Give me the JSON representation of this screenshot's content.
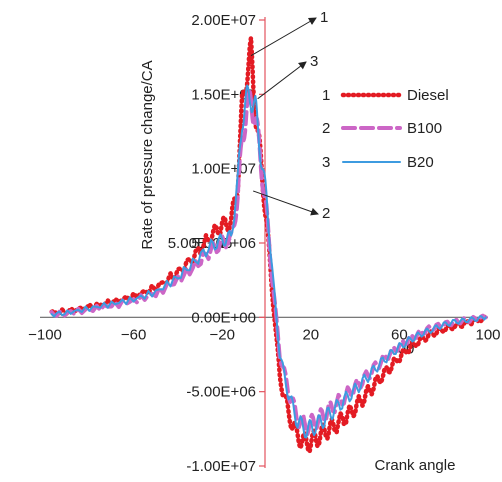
{
  "chart_data": {
    "type": "line",
    "xlabel": "Crank angle",
    "ylabel": "Rate of pressure change/CA",
    "xlim": [
      -100,
      100
    ],
    "ylim": [
      -10000000,
      20000000
    ],
    "x_ticks": [
      {
        "value": -100,
        "label": "−100"
      },
      {
        "value": -60,
        "label": "−60"
      },
      {
        "value": -20,
        "label": "−20"
      },
      {
        "value": 20,
        "label": "20"
      },
      {
        "value": 60,
        "label": "60"
      },
      {
        "value": 100,
        "label": "100"
      }
    ],
    "y_ticks": [
      {
        "value": 20000000,
        "label": "2.00E+07"
      },
      {
        "value": 15000000,
        "label": "1.50E+07"
      },
      {
        "value": 10000000,
        "label": "1.00E+07"
      },
      {
        "value": 5000000,
        "label": "5.00E+06"
      },
      {
        "value": 0,
        "label": "0.00E+00"
      },
      {
        "value": -5000000,
        "label": "-5.00E+06"
      },
      {
        "value": -10000000,
        "label": "-1.00E+07"
      }
    ],
    "stray_labels": [
      "5.00E+06",
      "00"
    ],
    "legend": {
      "position": "right",
      "entries": [
        {
          "number": "1",
          "name": "Diesel"
        },
        {
          "number": "2",
          "name": "B100"
        },
        {
          "number": "3",
          "name": "B20"
        }
      ]
    },
    "annotations": [
      {
        "label": "1",
        "target_x": -7,
        "target_y": 17600000
      },
      {
        "label": "3",
        "target_x": -4,
        "target_y": 14700000
      },
      {
        "label": "2",
        "target_x": -6,
        "target_y": 8500000
      }
    ],
    "series": [
      {
        "name": "Diesel",
        "color": "#e31b23",
        "style": "dotted",
        "x": [
          -97,
          -90,
          -80,
          -70,
          -60,
          -50,
          -40,
          -32,
          -25,
          -20,
          -16,
          -13,
          -11,
          -9,
          -7,
          -5,
          -3,
          0,
          3,
          6,
          10,
          14,
          18,
          21,
          24,
          27,
          30,
          35,
          40,
          45,
          50,
          55,
          60,
          65,
          70,
          75,
          80,
          85,
          90,
          95,
          99
        ],
        "y": [
          300000,
          400000,
          700000,
          1000000,
          1400000,
          2000000,
          3000000,
          4200000,
          5500000,
          6200000,
          6400000,
          9000000,
          14000000,
          16500000,
          17600000,
          14000000,
          11000000,
          6500000,
          1000000,
          -4000000,
          -6500000,
          -8000000,
          -8500000,
          -8300000,
          -8000000,
          -7600000,
          -7400000,
          -6800000,
          -6100000,
          -5200000,
          -4300000,
          -3500000,
          -2700000,
          -2000000,
          -1500000,
          -1100000,
          -800000,
          -600000,
          -400000,
          -200000,
          -100000
        ]
      },
      {
        "name": "B100",
        "color": "#cc66c6",
        "style": "dashed",
        "x": [
          -97,
          -90,
          -80,
          -70,
          -60,
          -50,
          -40,
          -32,
          -25,
          -20,
          -16,
          -13,
          -11,
          -9,
          -7,
          -5,
          -3,
          0,
          3,
          6,
          10,
          14,
          18,
          21,
          24,
          27,
          30,
          35,
          40,
          45,
          50,
          55,
          60,
          65,
          70,
          75,
          80,
          85,
          90,
          95,
          99
        ],
        "y": [
          200000,
          300000,
          500000,
          800000,
          1100000,
          1600000,
          2500000,
          3500000,
          4500000,
          5000000,
          5200000,
          8000000,
          12000000,
          14000000,
          14500000,
          13500000,
          11000000,
          7000000,
          2000000,
          -2500000,
          -5000000,
          -6800000,
          -7300000,
          -7100000,
          -6800000,
          -6400000,
          -6000000,
          -5400000,
          -4700000,
          -4000000,
          -3200000,
          -2500000,
          -1900000,
          -1400000,
          -1000000,
          -700000,
          -500000,
          -300000,
          -200000,
          -100000,
          0
        ]
      },
      {
        "name": "B20",
        "color": "#3d9be0",
        "style": "solid",
        "x": [
          -97,
          -90,
          -80,
          -70,
          -60,
          -50,
          -40,
          -32,
          -25,
          -20,
          -16,
          -13,
          -11,
          -9,
          -7,
          -5,
          -3,
          0,
          3,
          6,
          10,
          14,
          18,
          21,
          24,
          27,
          30,
          35,
          40,
          45,
          50,
          55,
          60,
          65,
          70,
          75,
          80,
          85,
          90,
          95,
          99
        ],
        "y": [
          200000,
          300000,
          600000,
          900000,
          1200000,
          1700000,
          2700000,
          3800000,
          4800000,
          5200000,
          5400000,
          9000000,
          13500000,
          14500000,
          15000000,
          14000000,
          11500000,
          8000000,
          2500000,
          -2500000,
          -5200000,
          -7000000,
          -7600000,
          -7400000,
          -7100000,
          -6700000,
          -6300000,
          -5600000,
          -4900000,
          -4100000,
          -3300000,
          -2600000,
          -2000000,
          -1500000,
          -1100000,
          -800000,
          -500000,
          -300000,
          -200000,
          -100000,
          0
        ]
      }
    ]
  }
}
